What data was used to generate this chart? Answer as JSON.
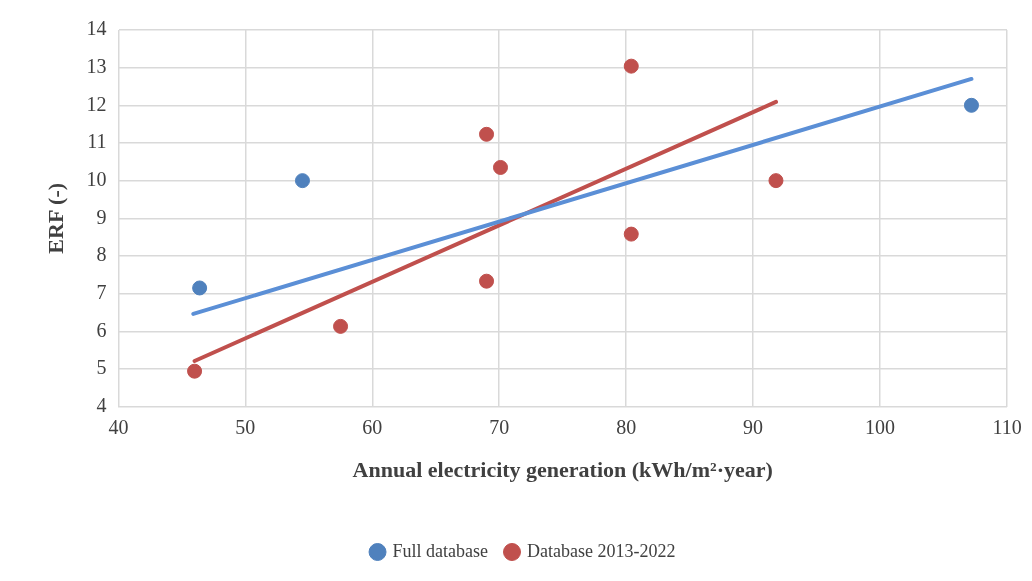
{
  "chart_data": {
    "type": "scatter",
    "xlabel": "Annual electricity generation (kWh/m²·year)",
    "ylabel": "ERF (-)",
    "xlim": [
      40,
      110
    ],
    "xticks": [
      40,
      50,
      60,
      70,
      80,
      90,
      100,
      110
    ],
    "ylim": [
      4,
      14
    ],
    "yticks": [
      4,
      5,
      6,
      7,
      8,
      9,
      10,
      11,
      12,
      13,
      14
    ],
    "grid": true,
    "legend": "bottom",
    "marker": "circle",
    "series": [
      {
        "name": "Full database",
        "color": "#4f81bd",
        "type": "scatter",
        "x": [
          46.4,
          54.5,
          107.2
        ],
        "values": [
          7.15,
          10.0,
          12.0
        ]
      },
      {
        "name": "Database 2013-2022",
        "color": "#c0504d",
        "type": "scatter",
        "x": [
          46.0,
          57.5,
          69.0,
          69.0,
          70.1,
          80.4,
          80.4,
          91.8
        ],
        "values": [
          4.94,
          6.13,
          11.23,
          7.33,
          10.35,
          13.04,
          8.58,
          10.0
        ]
      },
      {
        "color": "#5b8fd6",
        "type": "line",
        "marker": "none",
        "x": [
          45.9,
          107.2
        ],
        "values": [
          6.46,
          12.7
        ]
      },
      {
        "color": "#c0504d",
        "type": "line",
        "marker": "none",
        "x": [
          46.0,
          91.8
        ],
        "values": [
          5.21,
          12.09
        ]
      }
    ]
  }
}
